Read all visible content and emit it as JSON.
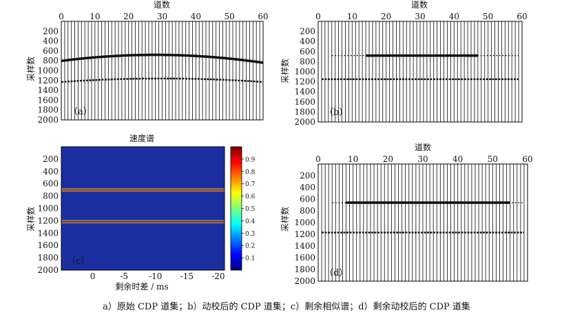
{
  "caption": "a）原始 CDP 道集；b）动校后的 CDP 道集；c）剩余相似谱；d）剩余动校后的 CDP 道集",
  "chart_data": [
    {
      "type": "seismic-gather",
      "panel_label": "（a）",
      "title": "道数",
      "ylabel": "采样数",
      "xlim": [
        0,
        60
      ],
      "ylim": [
        0,
        2000
      ],
      "x_ticks": [
        "0",
        "10",
        "20",
        "30",
        "40",
        "50",
        "60"
      ],
      "y_ticks": [
        "200",
        "400",
        "600",
        "800",
        "1000",
        "1200",
        "1400",
        "1600",
        "1800",
        "2000"
      ],
      "traces": {
        "first": 1,
        "last": 59,
        "step": 1
      },
      "events": [
        {
          "name": "",
          "shape": "hyperbola",
          "apex_trace": 28,
          "apex_sample": 680,
          "edge_sample": 840,
          "color": "#111111",
          "strength": 3
        },
        {
          "name": "",
          "shape": "hyperbola",
          "apex_trace": 30,
          "apex_sample": 1160,
          "edge_sample": 1230,
          "color": "#111111",
          "strength": 2
        }
      ]
    },
    {
      "type": "seismic-gather",
      "panel_label": "（b）",
      "title": "道数",
      "ylabel": "采样数",
      "xlim": [
        0,
        60
      ],
      "ylim": [
        0,
        2000
      ],
      "x_ticks": [
        "0",
        "10",
        "20",
        "30",
        "40",
        "50",
        "60"
      ],
      "y_ticks": [
        "200",
        "400",
        "600",
        "800",
        "1000",
        "1200",
        "1400",
        "1600",
        "1800",
        "2000"
      ],
      "traces": {
        "first": 1,
        "last": 59,
        "step": 1
      },
      "events": [
        {
          "name": "",
          "shape": "flat",
          "sample": 680,
          "from_trace": 14,
          "to_trace": 47,
          "faint_from": 4,
          "faint_to": 59,
          "color": "#111111",
          "strength": 3
        },
        {
          "name": "",
          "shape": "flat",
          "sample": 1150,
          "from_trace": 1,
          "to_trace": 59,
          "color": "#111111",
          "strength": 2
        }
      ]
    },
    {
      "type": "heatmap",
      "panel_label": "（c）",
      "title": "速度谱",
      "xlabel": "剩余时差 / ms",
      "ylabel": "采样数",
      "xlim": [
        5,
        -21
      ],
      "ylim": [
        0,
        2000
      ],
      "x_ticks": [
        {
          "value": 0,
          "label": "0"
        },
        {
          "value": -5,
          "label": "-5"
        },
        {
          "value": -10,
          "label": "-10"
        },
        {
          "value": -15,
          "label": "-15"
        },
        {
          "value": -20,
          "label": "-20"
        }
      ],
      "y_ticks": [
        "200",
        "400",
        "600",
        "800",
        "1000",
        "1200",
        "1400",
        "1600",
        "1800",
        "2000"
      ],
      "background_value": 0.05,
      "bands": [
        {
          "name": "",
          "sample": 700,
          "half_width": 30,
          "peak": 0.97
        },
        {
          "name": "",
          "sample": 1215,
          "half_width": 30,
          "peak": 0.85
        }
      ],
      "colorbar": {
        "range": [
          0,
          1
        ],
        "ticks": [
          "0.1",
          "0.2",
          "0.3",
          "0.4",
          "0.5",
          "0.6",
          "0.7",
          "0.8",
          "0.9"
        ],
        "colors": [
          "#00007f",
          "#0000ff",
          "#007fff",
          "#00ffff",
          "#7fff7f",
          "#ffff00",
          "#ff7f00",
          "#ff0000",
          "#7f0000"
        ]
      }
    },
    {
      "type": "seismic-gather",
      "panel_label": "（d）",
      "title": "道数",
      "ylabel": "采样数",
      "xlim": [
        0,
        60
      ],
      "ylim": [
        0,
        2000
      ],
      "x_ticks": [
        "0",
        "10",
        "20",
        "30",
        "40",
        "50",
        "60"
      ],
      "y_ticks": [
        "200",
        "400",
        "600",
        "800",
        "1000",
        "1200",
        "1400",
        "1600",
        "1800",
        "2000"
      ],
      "traces": {
        "first": 1,
        "last": 59,
        "step": 1
      },
      "events": [
        {
          "name": "",
          "shape": "flat",
          "sample": 660,
          "from_trace": 8,
          "to_trace": 55,
          "faint_from": 4,
          "faint_to": 59,
          "color": "#111111",
          "strength": 3
        },
        {
          "name": "",
          "shape": "flat",
          "sample": 1170,
          "from_trace": 1,
          "to_trace": 59,
          "color": "#111111",
          "strength": 2
        }
      ]
    }
  ]
}
